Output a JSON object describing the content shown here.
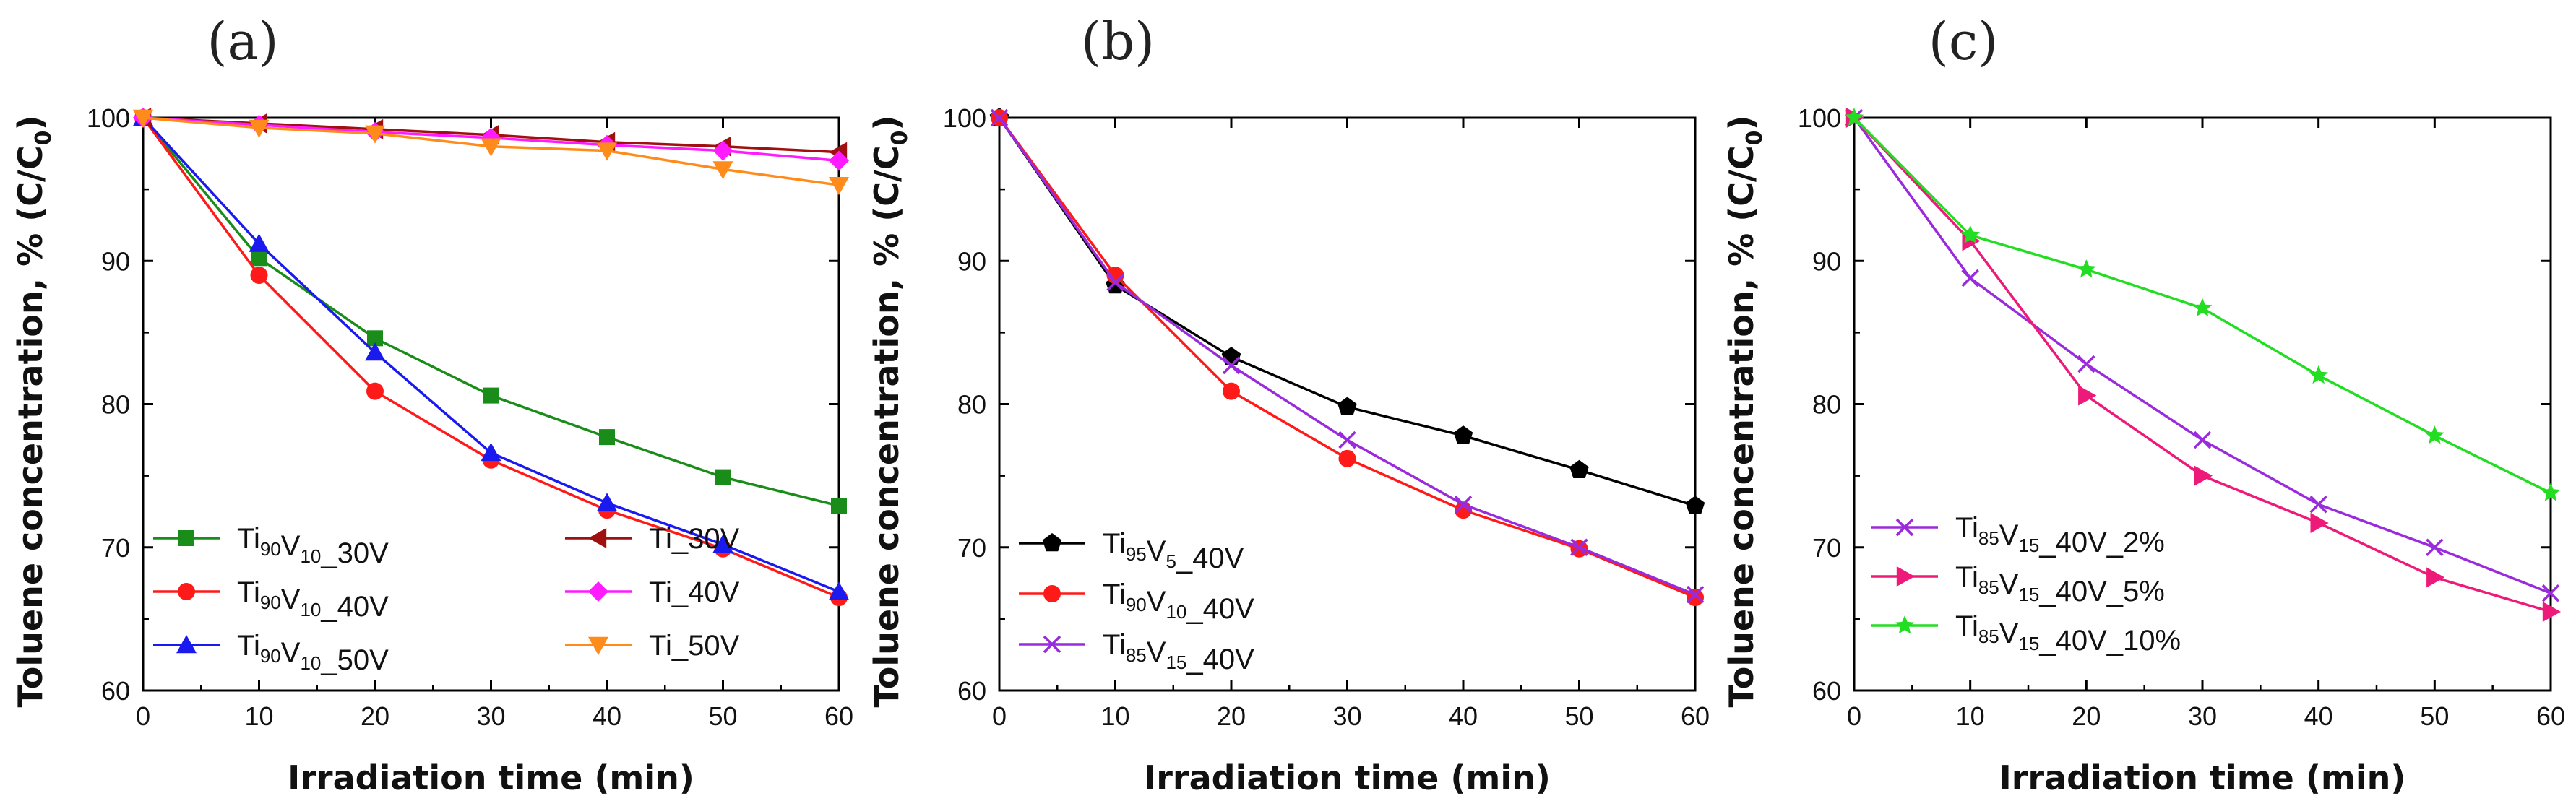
{
  "figure": {
    "panels": [
      "(a)",
      "(b)",
      "(c)"
    ]
  },
  "chart_data": [
    {
      "type": "line",
      "panel_label": "(a)",
      "xlabel": "Irradiation time (min)",
      "ylabel": "Toluene concentration, % (C/C",
      "ylabel_sub": "0",
      "ylabel_end": ")",
      "xlim": [
        0,
        60
      ],
      "ylim": [
        60,
        100
      ],
      "xticks": [
        0,
        10,
        20,
        30,
        40,
        50,
        60
      ],
      "yticks": [
        60,
        70,
        80,
        90,
        100
      ],
      "legend_position": "bottom",
      "x": [
        0,
        10,
        20,
        30,
        40,
        50,
        60
      ],
      "series": [
        {
          "name": "Ti90V10_30V",
          "legend": [
            [
              "Ti",
              ""
            ],
            [
              "90",
              "sub"
            ],
            [
              "V",
              ""
            ],
            [
              "10",
              "sub"
            ],
            [
              "_30V",
              ""
            ]
          ],
          "color": "#1a8c1a",
          "marker": "square",
          "values": [
            100,
            90.2,
            84.6,
            80.6,
            77.7,
            74.9,
            72.9
          ]
        },
        {
          "name": "Ti90V10_40V",
          "legend": [
            [
              "Ti",
              ""
            ],
            [
              "90",
              "sub"
            ],
            [
              "V",
              ""
            ],
            [
              "10",
              "sub"
            ],
            [
              "_40V",
              ""
            ]
          ],
          "color": "#ff1a1a",
          "marker": "circle",
          "values": [
            100,
            89.0,
            80.9,
            76.1,
            72.6,
            69.9,
            66.5
          ]
        },
        {
          "name": "Ti90V10_50V",
          "legend": [
            [
              "Ti",
              ""
            ],
            [
              "90",
              "sub"
            ],
            [
              "V",
              ""
            ],
            [
              "10",
              "sub"
            ],
            [
              "_50V",
              ""
            ]
          ],
          "color": "#1a1aee",
          "marker": "triangle-up",
          "values": [
            100,
            91.2,
            83.6,
            76.6,
            73.1,
            70.2,
            66.9
          ]
        },
        {
          "name": "Ti_30V",
          "legend": [
            [
              "Ti_30V",
              ""
            ]
          ],
          "color": "#a01010",
          "marker": "triangle-left",
          "values": [
            100,
            99.6,
            99.2,
            98.8,
            98.3,
            98.0,
            97.6
          ]
        },
        {
          "name": "Ti_40V",
          "legend": [
            [
              "Ti_40V",
              ""
            ]
          ],
          "color": "#ff1aff",
          "marker": "diamond",
          "values": [
            100,
            99.5,
            99.0,
            98.6,
            98.1,
            97.7,
            97.0
          ]
        },
        {
          "name": "Ti_50V",
          "legend": [
            [
              "Ti_50V",
              ""
            ]
          ],
          "color": "#ff8c1a",
          "marker": "triangle-down",
          "values": [
            100,
            99.3,
            98.9,
            98.0,
            97.7,
            96.4,
            95.3
          ]
        }
      ]
    },
    {
      "type": "line",
      "panel_label": "(b)",
      "xlabel": "Irradiation time (min)",
      "ylabel": "Toluene concentration, % (C/C",
      "ylabel_sub": "0",
      "ylabel_end": ")",
      "xlim": [
        0,
        60
      ],
      "ylim": [
        60,
        100
      ],
      "xticks": [
        0,
        10,
        20,
        30,
        40,
        50,
        60
      ],
      "yticks": [
        60,
        70,
        80,
        90,
        100
      ],
      "legend_position": "bottom-left",
      "x": [
        0,
        10,
        20,
        30,
        40,
        50,
        60
      ],
      "series": [
        {
          "name": "Ti95V5_40V",
          "legend": [
            [
              "Ti",
              ""
            ],
            [
              "95",
              "sub"
            ],
            [
              "V",
              ""
            ],
            [
              "5",
              "sub"
            ],
            [
              "_40V",
              ""
            ]
          ],
          "color": "#000000",
          "marker": "pentagon",
          "values": [
            100,
            88.3,
            83.3,
            79.8,
            77.8,
            75.4,
            72.9
          ]
        },
        {
          "name": "Ti90V10_40V",
          "legend": [
            [
              "Ti",
              ""
            ],
            [
              "90",
              "sub"
            ],
            [
              "V",
              ""
            ],
            [
              "10",
              "sub"
            ],
            [
              "_40V",
              ""
            ]
          ],
          "color": "#ff1a1a",
          "marker": "circle",
          "values": [
            100,
            89.0,
            80.9,
            76.2,
            72.6,
            69.9,
            66.5
          ]
        },
        {
          "name": "Ti85V15_40V",
          "legend": [
            [
              "Ti",
              ""
            ],
            [
              "85",
              "sub"
            ],
            [
              "V",
              ""
            ],
            [
              "15",
              "sub"
            ],
            [
              "_40V",
              ""
            ]
          ],
          "color": "#9a2bdc",
          "marker": "x",
          "values": [
            100,
            88.5,
            82.7,
            77.5,
            73.0,
            70.0,
            66.7
          ]
        }
      ]
    },
    {
      "type": "line",
      "panel_label": "(c)",
      "xlabel": "Irradiation time (min)",
      "ylabel": "Toluene concentration, % (C/C",
      "ylabel_sub": "0",
      "ylabel_end": ")",
      "xlim": [
        0,
        60
      ],
      "ylim": [
        60,
        100
      ],
      "xticks": [
        0,
        10,
        20,
        30,
        40,
        50,
        60
      ],
      "yticks": [
        60,
        70,
        80,
        90,
        100
      ],
      "legend_position": "bottom-left",
      "x": [
        0,
        10,
        20,
        30,
        40,
        50,
        60
      ],
      "series": [
        {
          "name": "Ti85V15_40V_2%",
          "legend": [
            [
              "Ti",
              ""
            ],
            [
              "85",
              "sub"
            ],
            [
              "V",
              ""
            ],
            [
              "15",
              "sub"
            ],
            [
              "_40V_2%",
              ""
            ]
          ],
          "color": "#9a2bdc",
          "marker": "x",
          "values": [
            100,
            88.8,
            82.8,
            77.5,
            73.0,
            70.0,
            66.8
          ]
        },
        {
          "name": "Ti85V15_40V_5%",
          "legend": [
            [
              "Ti",
              ""
            ],
            [
              "85",
              "sub"
            ],
            [
              "V",
              ""
            ],
            [
              "15",
              "sub"
            ],
            [
              "_40V_5%",
              ""
            ]
          ],
          "color": "#ee1a7a",
          "marker": "triangle-right",
          "values": [
            100,
            91.4,
            80.6,
            75.0,
            71.7,
            67.9,
            65.5
          ]
        },
        {
          "name": "Ti85V15_40V_10%",
          "legend": [
            [
              "Ti",
              ""
            ],
            [
              "85",
              "sub"
            ],
            [
              "V",
              ""
            ],
            [
              "15",
              "sub"
            ],
            [
              "_40V_10%",
              ""
            ]
          ],
          "color": "#22dd22",
          "marker": "star",
          "values": [
            100,
            91.8,
            89.4,
            86.7,
            82.0,
            77.8,
            73.8
          ]
        }
      ]
    }
  ]
}
